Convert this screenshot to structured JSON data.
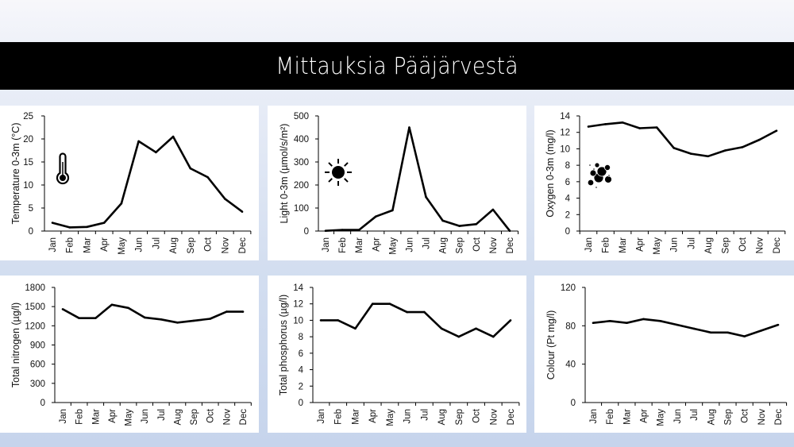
{
  "header": {
    "title": "Mittauksia Pääjärvestä"
  },
  "colors": {
    "line": "#000000",
    "band": "#000000",
    "panel": "#ffffff"
  },
  "chart_data": [
    {
      "id": "temperature",
      "type": "line",
      "title": "",
      "xlabel": "",
      "ylabel": "Temperature 0-3m (°C)",
      "icon": "thermometer-icon",
      "categories": [
        "Jan",
        "Feb",
        "Mar",
        "Apr",
        "May",
        "Jun",
        "Jul",
        "Aug",
        "Sep",
        "Oct",
        "Nov",
        "Dec"
      ],
      "values": [
        1.8,
        0.8,
        0.9,
        1.8,
        6.0,
        19.5,
        17.1,
        20.5,
        13.6,
        11.7,
        7.0,
        4.2
      ],
      "ylim": [
        0,
        25
      ],
      "yticks": [
        0,
        5,
        10,
        15,
        20,
        25
      ],
      "grid": false,
      "legend": "none"
    },
    {
      "id": "light",
      "type": "line",
      "title": "",
      "xlabel": "",
      "ylabel": "Light 0-3m (µmol/s/m²)",
      "icon": "sun-icon",
      "categories": [
        "Jan",
        "Feb",
        "Mar",
        "Apr",
        "May",
        "Jun",
        "Jul",
        "Aug",
        "Sep",
        "Oct",
        "Nov",
        "Dec"
      ],
      "values": [
        1,
        5,
        5,
        63,
        90,
        450,
        148,
        45,
        22,
        30,
        93,
        1
      ],
      "ylim": [
        0,
        500
      ],
      "yticks": [
        0,
        100,
        200,
        300,
        400,
        500
      ],
      "grid": false,
      "legend": "none"
    },
    {
      "id": "oxygen",
      "type": "line",
      "title": "",
      "xlabel": "",
      "ylabel": "Oxygen 0-3m (mg/l)",
      "icon": "bubbles-icon",
      "categories": [
        "Jan",
        "Feb",
        "Mar",
        "Apr",
        "May",
        "Jun",
        "Jul",
        "Aug",
        "Sep",
        "Oct",
        "Nov",
        "Dec"
      ],
      "values": [
        12.7,
        13.0,
        13.2,
        12.5,
        12.6,
        10.1,
        9.4,
        9.1,
        9.8,
        10.2,
        11.1,
        12.2
      ],
      "ylim": [
        0,
        14
      ],
      "yticks": [
        0,
        2,
        4,
        6,
        8,
        10,
        12,
        14
      ],
      "grid": false,
      "legend": "none"
    },
    {
      "id": "nitrogen",
      "type": "line",
      "title": "",
      "xlabel": "",
      "ylabel": "Total nitrogen (µg/l)",
      "icon": "",
      "categories": [
        "Jan",
        "Feb",
        "Mar",
        "Apr",
        "May",
        "Jun",
        "Jul",
        "Aug",
        "Sep",
        "Oct",
        "Nov",
        "Dec"
      ],
      "values": [
        1460,
        1320,
        1320,
        1530,
        1480,
        1330,
        1300,
        1250,
        1280,
        1310,
        1420,
        1420
      ],
      "ylim": [
        0,
        1800
      ],
      "yticks": [
        0,
        300,
        600,
        900,
        1200,
        1500,
        1800
      ],
      "grid": false,
      "legend": "none"
    },
    {
      "id": "phosphorus",
      "type": "line",
      "title": "",
      "xlabel": "",
      "ylabel": "Total phosphorus (µg/l)",
      "icon": "",
      "categories": [
        "Jan",
        "Feb",
        "Mar",
        "Apr",
        "May",
        "Jun",
        "Jul",
        "Aug",
        "Sep",
        "Oct",
        "Nov",
        "Dec"
      ],
      "values": [
        10,
        10,
        9,
        12,
        12,
        11,
        11,
        9,
        8,
        9,
        8,
        10
      ],
      "ylim": [
        0,
        14
      ],
      "yticks": [
        0,
        2,
        4,
        6,
        8,
        10,
        12,
        14
      ],
      "grid": false,
      "legend": "none"
    },
    {
      "id": "colour",
      "type": "line",
      "title": "",
      "xlabel": "",
      "ylabel": "Colour (Pt mg/l)",
      "icon": "",
      "categories": [
        "Jan",
        "Feb",
        "Mar",
        "Apr",
        "May",
        "Jun",
        "Jul",
        "Aug",
        "Sep",
        "Oct",
        "Nov",
        "Dec"
      ],
      "values": [
        83,
        85,
        83,
        87,
        85,
        81,
        77,
        73,
        73,
        69,
        75,
        81
      ],
      "ylim": [
        0,
        120
      ],
      "yticks": [
        0,
        40,
        80,
        120
      ],
      "grid": false,
      "legend": "none"
    }
  ]
}
